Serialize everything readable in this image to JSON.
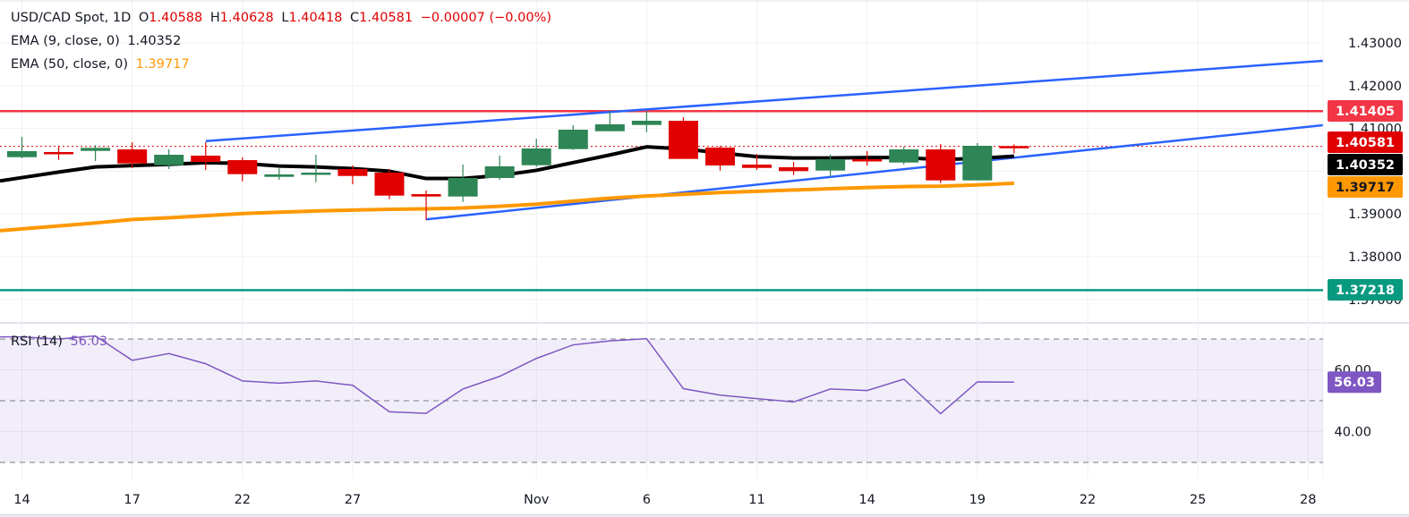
{
  "legend": {
    "symbol": "USD/CAD Spot, 1D",
    "o_label": "O",
    "o": "1.40588",
    "h_label": "H",
    "h": "1.40628",
    "l_label": "L",
    "l": "1.40418",
    "c_label": "C",
    "c": "1.40581",
    "change": "−0.00007 (−0.00%)",
    "ema9_label": "EMA (9, close, 0)",
    "ema9_value": "1.40352",
    "ema50_label": "EMA (50, close, 0)",
    "ema50_value": "1.39717",
    "rsi_label": "RSI (14)",
    "rsi_value": "56.03"
  },
  "colors": {
    "up": "#2e8555",
    "down": "#e00000",
    "ema9": "#000000",
    "ema50": "#ff9800",
    "trendline": "#2962ff",
    "resistance": "#f23645",
    "support": "#089981",
    "rsi": "#7e57c2"
  },
  "chart_data": [
    {
      "type": "candlestick",
      "title": "USD/CAD Spot, 1D",
      "ylim": [
        1.365,
        1.435
      ],
      "y_ticks": [
        "1.43000",
        "1.42000",
        "1.41000",
        "1.39000",
        "1.38000",
        "1.37000"
      ],
      "x_ticks": [
        "14",
        "17",
        "22",
        "27",
        "Nov",
        "6",
        "11",
        "14",
        "19",
        "22",
        "25",
        "28"
      ],
      "grid": true,
      "candles": [
        [
          1.40328,
          1.40803,
          1.40301,
          1.40469
        ],
        [
          1.40448,
          1.40588,
          1.40266,
          1.40412
        ],
        [
          1.40475,
          1.40609,
          1.40238,
          1.40546
        ],
        [
          1.4051,
          1.40678,
          1.40071,
          1.40182
        ],
        [
          1.4014,
          1.4051,
          1.4005,
          1.40385
        ],
        [
          1.40364,
          1.40678,
          1.40029,
          1.40218
        ],
        [
          1.40259,
          1.40322,
          1.39764,
          1.39931
        ],
        [
          1.39868,
          1.40065,
          1.39799,
          1.39925
        ],
        [
          1.3996,
          1.40385,
          1.39743,
          1.39967
        ],
        [
          1.4005,
          1.40134,
          1.39695,
          1.39889
        ],
        [
          1.39967,
          1.4005,
          1.39345,
          1.39429
        ],
        [
          1.39464,
          1.39548,
          1.38858,
          1.39408
        ],
        [
          1.39408,
          1.40155,
          1.39282,
          1.39841
        ],
        [
          1.39841,
          1.40364,
          1.39799,
          1.40113
        ],
        [
          1.4014,
          1.40762,
          1.40098,
          1.40531
        ],
        [
          1.40517,
          1.41075,
          1.405,
          1.40971
        ],
        [
          1.40935,
          1.4141,
          1.40935,
          1.41096
        ],
        [
          1.41082,
          1.4141,
          1.40914,
          1.4118
        ],
        [
          1.4118,
          1.41264,
          1.40287,
          1.40287
        ],
        [
          1.40552,
          1.40588,
          1.40015,
          1.40134
        ],
        [
          1.40155,
          1.40406,
          1.40029,
          1.40077
        ],
        [
          1.40092,
          1.40218,
          1.3991,
          1.40002
        ],
        [
          1.40015,
          1.40385,
          1.39877,
          1.4028
        ],
        [
          1.4028,
          1.40469,
          1.40134,
          1.40245
        ],
        [
          1.40203,
          1.40573,
          1.40161,
          1.4051
        ],
        [
          1.4051,
          1.40636,
          1.39722,
          1.39785
        ],
        [
          1.39785,
          1.40657,
          1.39785,
          1.40594
        ],
        [
          1.40588,
          1.40628,
          1.40418,
          1.40581
        ]
      ],
      "candle_fields": [
        "open",
        "high",
        "low",
        "close"
      ],
      "series": [
        {
          "name": "EMA (9, close, 0)",
          "values": [
            1.3985,
            1.3998,
            1.401,
            1.4013,
            1.4016,
            1.402,
            1.4018,
            1.4012,
            1.401,
            1.4006,
            1.4,
            1.3983,
            1.3983,
            1.399,
            1.4002,
            1.402,
            1.4038,
            1.4057,
            1.4052,
            1.4043,
            1.4034,
            1.4031,
            1.4031,
            1.4032,
            1.4032,
            1.4027,
            1.403,
            1.40352
          ]
        },
        {
          "name": "EMA (50, close, 0)",
          "values": [
            1.3865,
            1.3872,
            1.3879,
            1.3887,
            1.3891,
            1.3896,
            1.3901,
            1.3904,
            1.3907,
            1.3909,
            1.3911,
            1.3912,
            1.3914,
            1.3918,
            1.3923,
            1.393,
            1.3937,
            1.3942,
            1.3946,
            1.395,
            1.3953,
            1.3956,
            1.3959,
            1.3962,
            1.3964,
            1.3965,
            1.3968,
            1.39717
          ]
        }
      ],
      "horizontal_levels": [
        {
          "value": 1.41405,
          "label": "1.41405",
          "kind": "resistance"
        },
        {
          "value": 1.37218,
          "label": "1.37218",
          "kind": "support"
        }
      ],
      "trendlines": [
        {
          "from": [
            5,
            1.40705
          ],
          "to": [
            35.4,
            1.42582
          ]
        },
        {
          "from": [
            11,
            1.38873
          ],
          "to": [
            35.4,
            1.41075
          ]
        }
      ],
      "last_price": {
        "value": 1.40581,
        "label": "1.40581"
      },
      "price_labels": [
        {
          "label": "1.41405",
          "kind": "resistance"
        },
        {
          "label": "1.40581",
          "kind": "last"
        },
        {
          "label": "1.40352",
          "kind": "ema9"
        },
        {
          "label": "1.39717",
          "kind": "ema50"
        },
        {
          "label": "1.37218",
          "kind": "support"
        }
      ]
    },
    {
      "type": "line",
      "title": "RSI (14)",
      "ylim": [
        25,
        75
      ],
      "y_ticks": [
        "60.00",
        "40.00"
      ],
      "bands": [
        30,
        50,
        70
      ],
      "series": [
        {
          "name": "RSI (14)",
          "values": [
            70.7,
            70.0,
            71.0,
            63.1,
            65.3,
            62.0,
            56.4,
            55.7,
            56.4,
            55.0,
            46.4,
            45.9,
            53.8,
            57.9,
            63.7,
            68.1,
            69.4,
            70.1,
            53.9,
            51.8,
            50.7,
            49.6,
            53.8,
            53.3,
            57.0,
            45.8,
            56.1,
            56.03
          ]
        }
      ],
      "last_value_label": "56.03"
    }
  ]
}
